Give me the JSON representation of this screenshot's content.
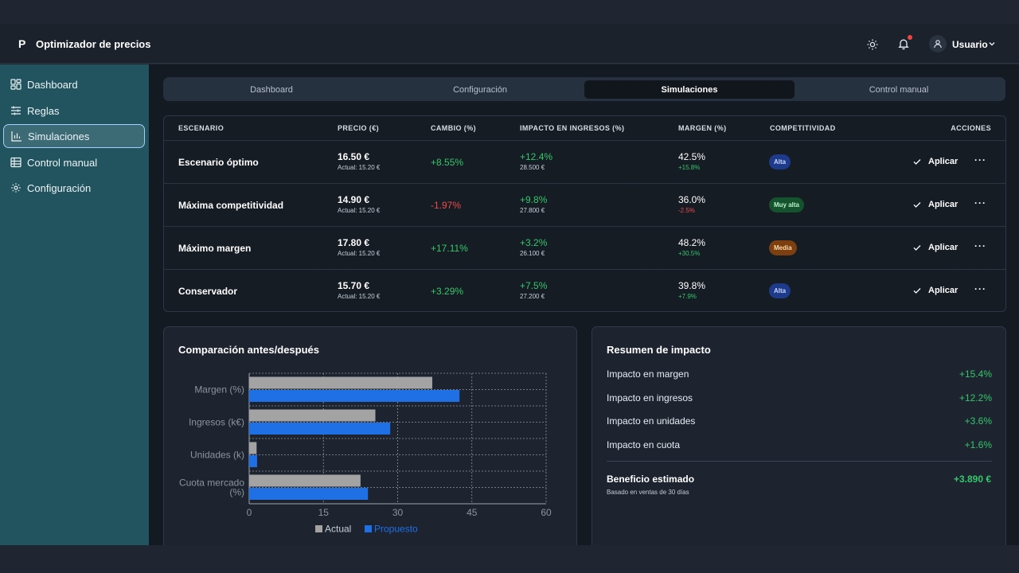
{
  "app": {
    "logo": "P",
    "title": "Optimizador de precios",
    "user": "Usuario"
  },
  "icons": {
    "theme": "sun-icon",
    "notifications": "bell-icon",
    "user": "user-icon",
    "dropdown": "chevron-down-icon"
  },
  "colors": {
    "accent": "#1f6fe5",
    "positive": "#34c76a",
    "negative": "#ef4a4a",
    "sidebar": "#21545f"
  },
  "sidebar": {
    "items": [
      {
        "label": "Dashboard",
        "icon": "dashboard-icon"
      },
      {
        "label": "Reglas",
        "icon": "sliders-icon"
      },
      {
        "label": "Simulaciones",
        "icon": "bar-chart-icon",
        "active": true
      },
      {
        "label": "Control manual",
        "icon": "table-icon"
      },
      {
        "label": "Configuración",
        "icon": "gear-icon"
      }
    ]
  },
  "tabs": [
    {
      "label": "Dashboard"
    },
    {
      "label": "Configuración"
    },
    {
      "label": "Simulaciones",
      "active": true
    },
    {
      "label": "Control manual"
    }
  ],
  "table": {
    "headers": [
      "ESCENARIO",
      "PRECIO (€)",
      "CAMBIO (%)",
      "IMPACTO EN INGRESOS (%)",
      "MARGEN (%)",
      "COMPETITIVIDAD",
      "ACCIONES"
    ],
    "apply_label": "Aplicar",
    "more_label": "···",
    "rows": [
      {
        "scenario": "Escenario óptimo",
        "price": "16.50 €",
        "actual": "Actual: 15.20 €",
        "change": "+8.55%",
        "change_sign": "pos",
        "impact": "+12.4%",
        "impact_abs": "28.500 €",
        "margin": "42.5%",
        "margin_delta": "+15.8%",
        "margin_sign": "pos",
        "competitiveness": "Alta",
        "level": "alta"
      },
      {
        "scenario": "Máxima competitividad",
        "price": "14.90 €",
        "actual": "Actual: 15.20 €",
        "change": "-1.97%",
        "change_sign": "neg",
        "impact": "+9.8%",
        "impact_abs": "27.800 €",
        "margin": "36.0%",
        "margin_delta": "-2.5%",
        "margin_sign": "neg",
        "competitiveness": "Muy alta",
        "level": "muy"
      },
      {
        "scenario": "Máximo margen",
        "price": "17.80 €",
        "actual": "Actual: 15.20 €",
        "change": "+17.11%",
        "change_sign": "pos",
        "impact": "+3.2%",
        "impact_abs": "26.100 €",
        "margin": "48.2%",
        "margin_delta": "+30.5%",
        "margin_sign": "pos",
        "competitiveness": "Media",
        "level": "media"
      },
      {
        "scenario": "Conservador",
        "price": "15.70 €",
        "actual": "Actual: 15.20 €",
        "change": "+3.29%",
        "change_sign": "pos",
        "impact": "+7.5%",
        "impact_abs": "27.200 €",
        "margin": "39.8%",
        "margin_delta": "+7.9%",
        "margin_sign": "pos",
        "competitiveness": "Alta",
        "level": "alta"
      }
    ]
  },
  "chart_card": {
    "title": "Comparación antes/después"
  },
  "chart_data": {
    "type": "bar",
    "orientation": "horizontal",
    "categories": [
      "Margen (%)",
      "Ingresos (k€)",
      "Unidades (k)",
      "Cuota mercado (%)"
    ],
    "series": [
      {
        "name": "Actual",
        "values": [
          37,
          25.5,
          1.5,
          22.5
        ],
        "color": "#a3a3a3"
      },
      {
        "name": "Propuesto",
        "values": [
          42.5,
          28.5,
          1.6,
          24
        ],
        "color": "#1f6fe5"
      }
    ],
    "xlim": [
      0,
      60
    ],
    "xticks": [
      0,
      15,
      30,
      45,
      60
    ],
    "grid": true,
    "legend": "bottom"
  },
  "summary": {
    "title": "Resumen de impacto",
    "items": [
      {
        "label": "Impacto en margen",
        "value": "+15.4%"
      },
      {
        "label": "Impacto en ingresos",
        "value": "+12.2%"
      },
      {
        "label": "Impacto en unidades",
        "value": "+3.6%"
      },
      {
        "label": "Impacto en cuota",
        "value": "+1.6%"
      }
    ],
    "benefit_label": "Beneficio estimado",
    "benefit_value": "+3.890 €",
    "benefit_note": "Basado en ventas de 30 días"
  }
}
